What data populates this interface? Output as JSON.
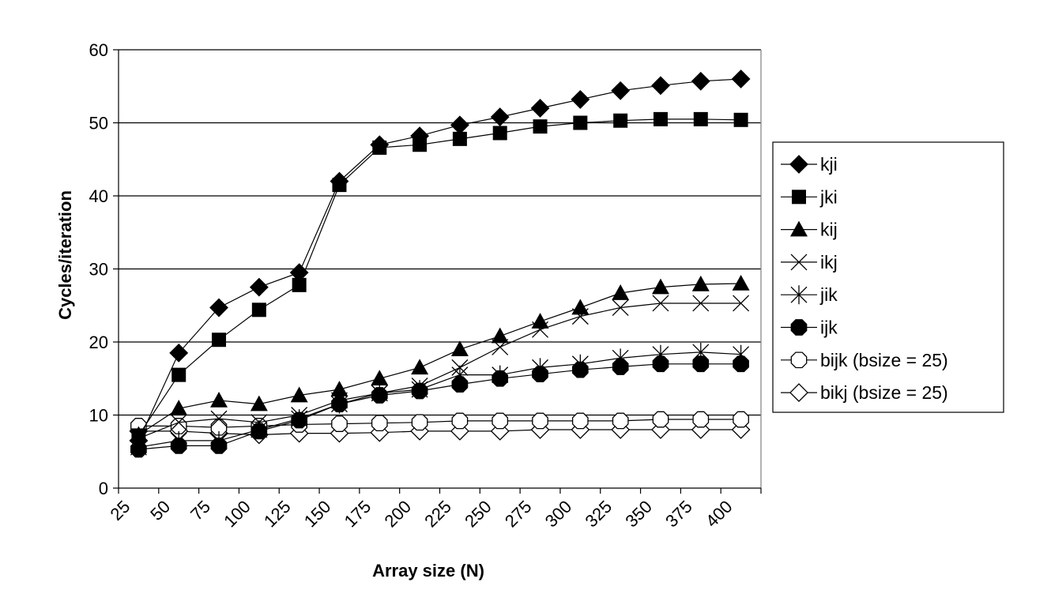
{
  "chart_data": {
    "type": "line",
    "title": "",
    "xlabel": "Array size (N)",
    "ylabel": "Cycles/iteration",
    "x_ticks": [
      "25",
      "50",
      "75",
      "100",
      "125",
      "150",
      "175",
      "200",
      "225",
      "250",
      "275",
      "300",
      "325",
      "350",
      "375",
      "400"
    ],
    "x": [
      25,
      50,
      75,
      100,
      125,
      150,
      175,
      200,
      225,
      250,
      275,
      300,
      325,
      350,
      375,
      400
    ],
    "ylim": [
      0,
      60
    ],
    "y_ticks": [
      0,
      10,
      20,
      30,
      40,
      50,
      60
    ],
    "grid": "horizontal",
    "legend_position": "right",
    "series": [
      {
        "name": "kji",
        "marker": "diamond-filled",
        "values": [
          6.5,
          18.5,
          24.7,
          27.5,
          29.5,
          42.0,
          47.0,
          48.2,
          49.7,
          50.8,
          52.0,
          53.2,
          54.4,
          55.1,
          55.7,
          56.0
        ]
      },
      {
        "name": "jki",
        "marker": "square-filled",
        "values": [
          7.2,
          15.5,
          20.3,
          24.4,
          27.8,
          41.5,
          46.6,
          47.0,
          47.8,
          48.6,
          49.5,
          50.0,
          50.3,
          50.5,
          50.5,
          50.4
        ]
      },
      {
        "name": "kij",
        "marker": "triangle-filled",
        "values": [
          7.3,
          10.9,
          12.0,
          11.5,
          12.7,
          13.5,
          15.0,
          16.5,
          19.0,
          20.8,
          22.8,
          24.7,
          26.7,
          27.5,
          27.9,
          28.0
        ]
      },
      {
        "name": "ikj",
        "marker": "x",
        "values": [
          6.8,
          9.0,
          9.5,
          9.0,
          10.0,
          12.0,
          13.0,
          14.0,
          16.5,
          19.3,
          21.7,
          23.5,
          24.7,
          25.3,
          25.3,
          25.3
        ]
      },
      {
        "name": "jik",
        "marker": "asterisk",
        "values": [
          5.6,
          6.5,
          6.5,
          8.0,
          9.5,
          11.5,
          13.0,
          13.5,
          15.5,
          15.5,
          16.5,
          17.0,
          17.8,
          18.3,
          18.6,
          18.3
        ]
      },
      {
        "name": "ijk",
        "marker": "octagon-filled",
        "values": [
          5.3,
          5.8,
          5.8,
          7.8,
          9.3,
          11.5,
          12.7,
          13.3,
          14.2,
          15.0,
          15.6,
          16.2,
          16.6,
          17.0,
          17.0,
          17.0
        ]
      },
      {
        "name": "bijk (bsize = 25)",
        "marker": "octagon-open",
        "values": [
          8.5,
          8.5,
          8.3,
          8.5,
          8.7,
          8.8,
          8.9,
          9.0,
          9.2,
          9.2,
          9.2,
          9.2,
          9.2,
          9.4,
          9.4,
          9.4
        ]
      },
      {
        "name": "bikj (bsize = 25)",
        "marker": "diamond-open",
        "values": [
          7.8,
          7.8,
          7.5,
          7.3,
          7.5,
          7.5,
          7.6,
          7.8,
          7.8,
          7.8,
          8.0,
          8.0,
          8.0,
          8.0,
          8.0,
          8.0
        ]
      }
    ]
  }
}
